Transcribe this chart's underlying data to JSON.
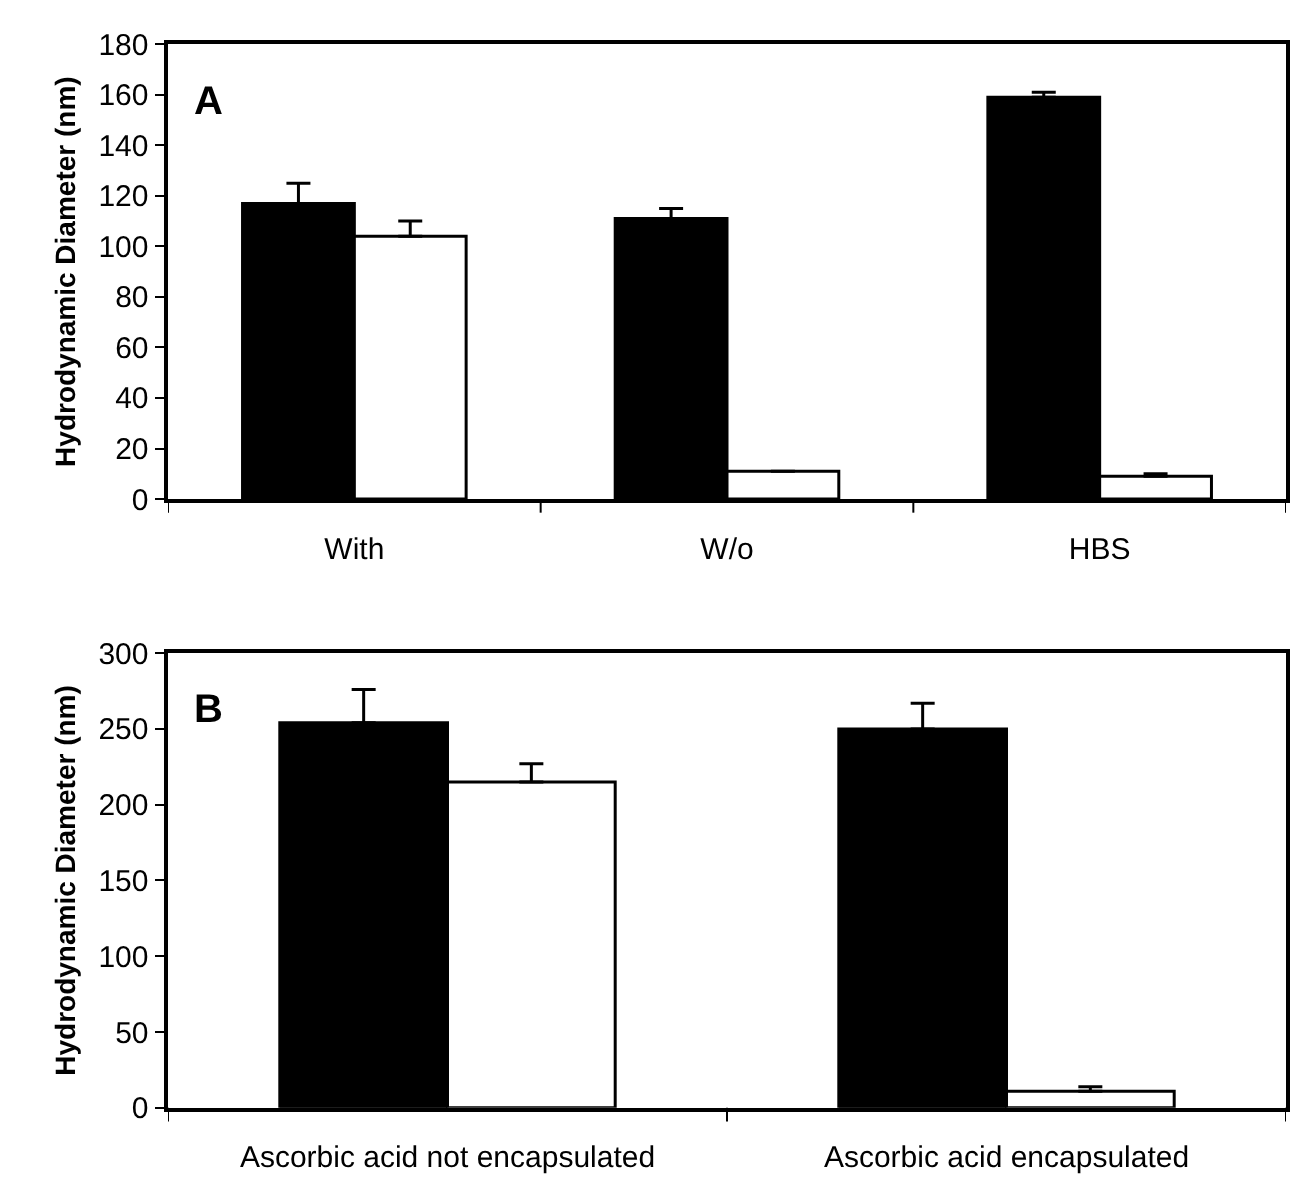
{
  "chart_data": [
    {
      "type": "bar",
      "categories": [
        "With",
        "W/o",
        "HBS"
      ],
      "ylabel": "Hydrodynamic Diameter (nm)",
      "annotations": [
        "A"
      ],
      "ylim": [
        0,
        180
      ],
      "yticks": [
        0,
        20,
        40,
        60,
        80,
        100,
        120,
        140,
        160,
        180
      ],
      "series": [
        {
          "color": "#000000",
          "values": [
            117,
            111,
            159
          ],
          "errors": [
            [
              117,
              125
            ],
            [
              111,
              115
            ],
            [
              159,
              161
            ]
          ]
        },
        {
          "color": "#ffffff",
          "values": [
            104,
            11,
            9
          ],
          "errors": [
            [
              104,
              110
            ],
            null,
            [
              9,
              10
            ]
          ]
        }
      ]
    },
    {
      "type": "bar",
      "categories": [
        "Ascorbic acid not encapsulated",
        "Ascorbic acid encapsulated"
      ],
      "ylabel": "Hydrodynamic Diameter (nm)",
      "annotations": [
        "B"
      ],
      "ylim": [
        0,
        300
      ],
      "yticks": [
        0,
        50,
        100,
        150,
        200,
        250,
        300
      ],
      "series": [
        {
          "color": "#000000",
          "values": [
            254,
            250
          ],
          "errors": [
            [
              254,
              276
            ],
            [
              250,
              267
            ]
          ]
        },
        {
          "color": "#ffffff",
          "values": [
            215,
            11
          ],
          "errors": [
            [
              215,
              227
            ],
            [
              11,
              14
            ]
          ]
        }
      ]
    }
  ]
}
